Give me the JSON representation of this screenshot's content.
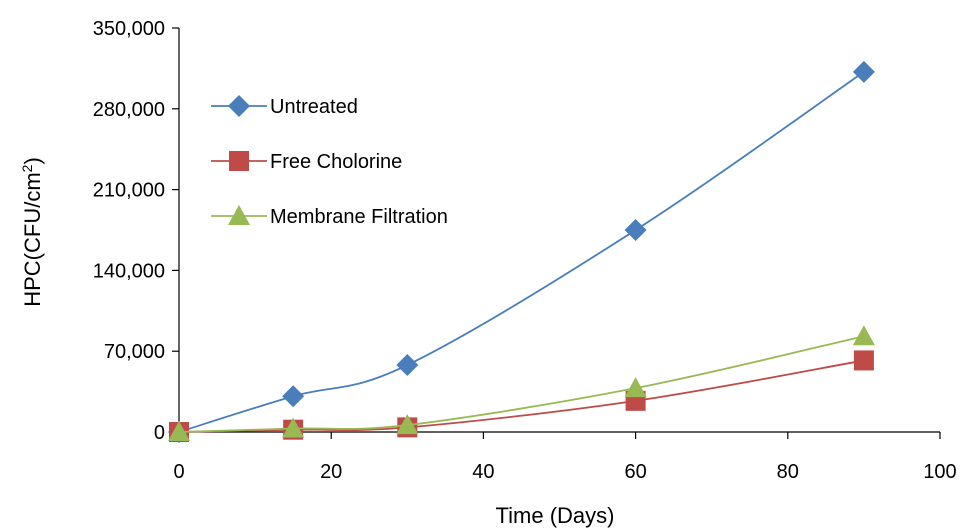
{
  "chart_data": {
    "type": "line",
    "title": "",
    "xlabel": "Time (Days)",
    "ylabel_main": "HPC(CFU/cm",
    "ylabel_sup": "2",
    "ylabel_end": ")",
    "xlim": [
      0,
      100
    ],
    "ylim": [
      0,
      350000
    ],
    "x_ticks": [
      "0",
      "20",
      "40",
      "60",
      "80",
      "100"
    ],
    "y_ticks": [
      "0",
      "70,000",
      "140,000",
      "210,000",
      "280,000",
      "350,000"
    ],
    "grid": false,
    "legend_position": "upper-left",
    "series": [
      {
        "name": "Untreated",
        "color": "#4a7ebb",
        "marker": "diamond",
        "x": [
          0,
          15,
          30,
          60,
          90
        ],
        "y": [
          0,
          31000,
          58000,
          175000,
          312000
        ]
      },
      {
        "name": "Free Cholorine",
        "color": "#be4b48",
        "marker": "square",
        "x": [
          0,
          15,
          30,
          60,
          90
        ],
        "y": [
          0,
          2000,
          4000,
          27000,
          62000
        ]
      },
      {
        "name": "Membrane Filtration",
        "color": "#98b954",
        "marker": "triangle",
        "x": [
          0,
          15,
          30,
          60,
          90
        ],
        "y": [
          0,
          3000,
          6000,
          38000,
          83000
        ]
      }
    ]
  }
}
